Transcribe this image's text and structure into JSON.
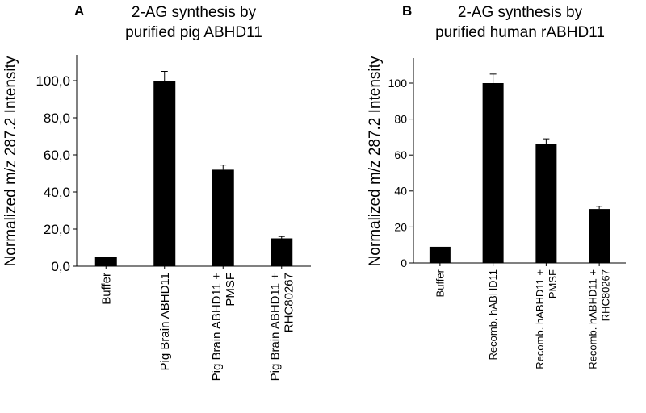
{
  "chart_data": [
    {
      "type": "bar",
      "panel": "A",
      "title": [
        "2-AG synthesis by",
        "purified pig ABHD11"
      ],
      "ylabel": "Normalized m/z 287.2 Intensity",
      "xlabel": "",
      "ylim": [
        0,
        100
      ],
      "yticks": [
        "0,0",
        "20,0",
        "40,0",
        "60,0",
        "80,0",
        "100,0"
      ],
      "categories": [
        [
          "Buffer"
        ],
        [
          "Pig Brain ABHD11"
        ],
        [
          "Pig Brain ABHD11 +",
          "PMSF"
        ],
        [
          "Pig Brain ABHD11 +",
          "RHC80267"
        ]
      ],
      "values": [
        5,
        100,
        52,
        15
      ],
      "errors": [
        0,
        5,
        2.5,
        1
      ],
      "bar_color": "#000000"
    },
    {
      "type": "bar",
      "panel": "B",
      "title": [
        "2-AG synthesis by",
        "purified human rABHD11"
      ],
      "ylabel": "Normalized m/z 287.2 Intensity",
      "xlabel": "",
      "ylim": [
        0,
        100
      ],
      "yticks": [
        "0",
        "20",
        "40",
        "60",
        "80",
        "100"
      ],
      "categories": [
        [
          "Buffer"
        ],
        [
          "Recomb. hABHD11"
        ],
        [
          "Recomb. hABHD11 +",
          "PMSF"
        ],
        [
          "Recomb. hABHD11 +",
          "RHC80267"
        ]
      ],
      "values": [
        9,
        100,
        66,
        30
      ],
      "errors": [
        0,
        5,
        3,
        1.5
      ],
      "bar_color": "#000000"
    }
  ]
}
